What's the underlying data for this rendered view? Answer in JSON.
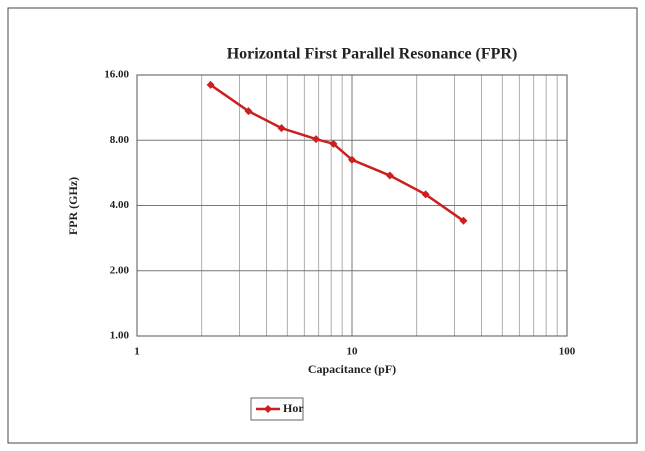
{
  "chart_data": {
    "type": "line",
    "title": "Horizontal First Parallel Resonance (FPR)",
    "xlabel": "Capacitance (pF)",
    "ylabel": "FPR (GHz)",
    "x": [
      2.2,
      3.3,
      4.7,
      6.8,
      8.2,
      10,
      15,
      22,
      33
    ],
    "series": [
      {
        "name": "Hor",
        "color": "#cc1f1f",
        "values": [
          14.4,
          10.9,
          9.1,
          8.1,
          7.7,
          6.5,
          5.5,
          4.5,
          3.4
        ]
      }
    ],
    "xlim": [
      1,
      100
    ],
    "xticks": [
      1,
      10,
      100
    ],
    "xminorticks": [
      2,
      3,
      4,
      5,
      6,
      7,
      8,
      9,
      20,
      30,
      40,
      50,
      60,
      70,
      80,
      90
    ],
    "ylim": [
      1,
      16
    ],
    "yticks": [
      {
        "value": 1,
        "label": "1.00"
      },
      {
        "value": 2,
        "label": "2.00"
      },
      {
        "value": 4,
        "label": "4.00"
      },
      {
        "value": 8,
        "label": "8.00"
      },
      {
        "value": 16,
        "label": "16.00"
      }
    ],
    "xlog": true,
    "ylog": true,
    "grid": true,
    "legend": "bottom"
  }
}
